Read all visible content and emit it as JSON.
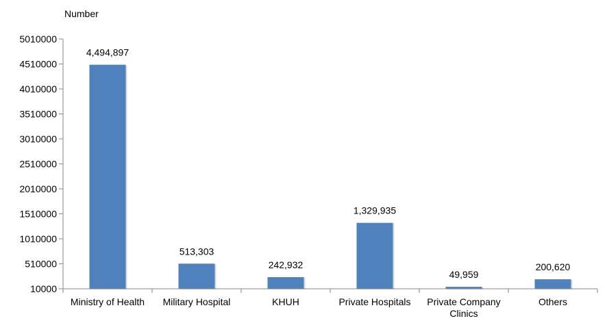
{
  "chart_data": {
    "type": "bar",
    "title": "",
    "xlabel": "",
    "ylabel": "Number",
    "categories": [
      "Ministry of Health",
      "Military Hospital",
      "KHUH",
      "Private Hospitals",
      "Private Company Clinics",
      "Others"
    ],
    "values": [
      4494897,
      513303,
      242932,
      1329935,
      49959,
      200620
    ],
    "value_labels": [
      "4,494,897",
      "513,303",
      "242,932",
      "1,329,935",
      "49,959",
      "200,620"
    ],
    "yticks": [
      "10000",
      "510000",
      "1010000",
      "1510000",
      "2010000",
      "2510000",
      "3010000",
      "3510000",
      "4010000",
      "4510000",
      "5010000"
    ],
    "ylim": [
      10000,
      5010000
    ],
    "grid": false,
    "legend": "none",
    "colors": {
      "bar": "#4F81BD",
      "axis": "#868686"
    }
  }
}
